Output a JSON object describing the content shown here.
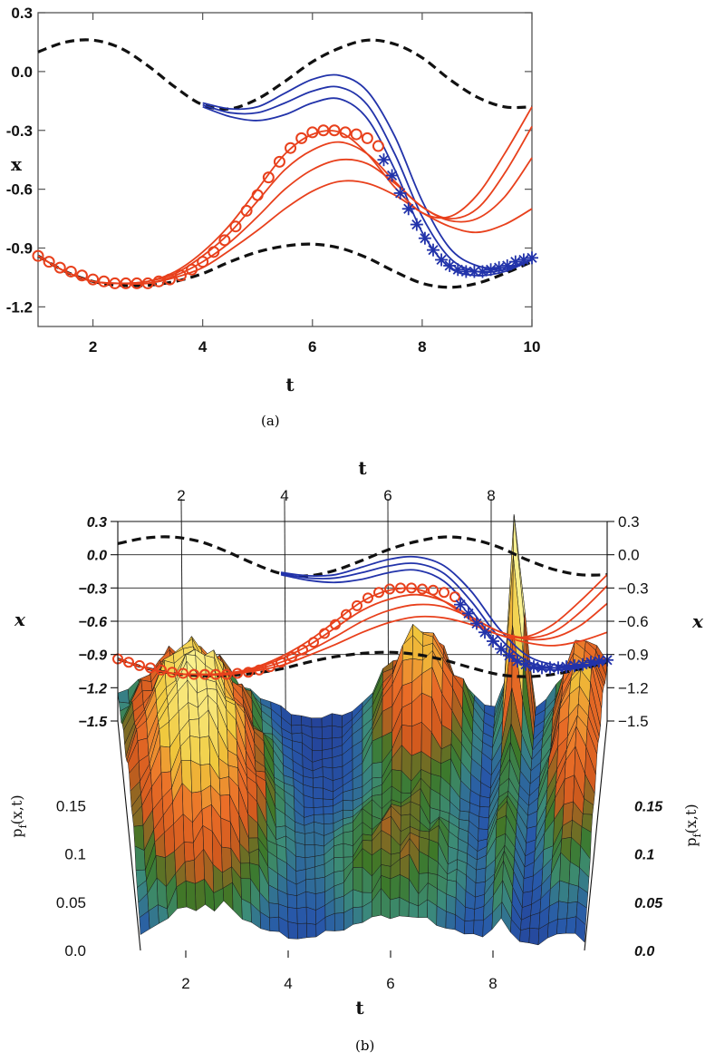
{
  "captions": {
    "a": "(a)",
    "b": "(b)"
  },
  "colors": {
    "blue": "#2233aa",
    "red": "#e8401c",
    "dashed": "#111111",
    "frame": "#555555"
  },
  "chart_data": [
    {
      "panel": "a",
      "type": "line",
      "xlabel": "t",
      "ylabel": "x",
      "xlim": [
        1,
        10
      ],
      "ylim": [
        -1.3,
        0.3
      ],
      "xticks": [
        "2",
        "4",
        "6",
        "8",
        "10"
      ],
      "xtick_values": [
        2,
        4,
        6,
        8,
        10
      ],
      "yticks": [
        "0.3",
        "0.0",
        "-0.3",
        "-0.6",
        "-0.9",
        "-1.2"
      ],
      "ytick_values": [
        0.3,
        0.0,
        -0.3,
        -0.6,
        -0.9,
        -1.2
      ],
      "series": [
        {
          "style": "dashed-black",
          "x": [
            1,
            1.5,
            2,
            2.5,
            3,
            3.5,
            4,
            4.5,
            5,
            5.5,
            6,
            6.5,
            7,
            7.5,
            8,
            8.5,
            9,
            9.5,
            10
          ],
          "y": [
            0.1,
            0.15,
            0.16,
            0.12,
            0.03,
            -0.08,
            -0.17,
            -0.19,
            -0.14,
            -0.05,
            0.05,
            0.12,
            0.16,
            0.14,
            0.07,
            -0.04,
            -0.13,
            -0.18,
            -0.18
          ]
        },
        {
          "style": "dashed-black",
          "x": [
            1,
            1.5,
            2,
            2.5,
            3,
            3.5,
            4,
            4.5,
            5,
            5.5,
            6,
            6.5,
            7,
            7.5,
            8,
            8.5,
            9,
            9.5,
            10
          ],
          "y": [
            -0.94,
            -1.02,
            -1.07,
            -1.09,
            -1.09,
            -1.07,
            -1.03,
            -0.97,
            -0.92,
            -0.89,
            -0.88,
            -0.9,
            -0.95,
            -1.02,
            -1.08,
            -1.1,
            -1.08,
            -1.03,
            -0.97
          ]
        },
        {
          "style": "blue",
          "x": [
            4,
            4.5,
            5,
            5.5,
            6,
            6.5,
            7,
            7.5,
            8,
            8.5,
            9,
            9.5,
            10
          ],
          "y": [
            -0.16,
            -0.19,
            -0.18,
            -0.11,
            -0.04,
            -0.02,
            -0.1,
            -0.33,
            -0.66,
            -0.9,
            -0.99,
            -1.0,
            -0.96
          ]
        },
        {
          "style": "blue",
          "x": [
            4,
            4.5,
            5,
            5.5,
            6,
            6.5,
            7,
            7.5,
            8,
            8.5,
            9,
            9.5,
            10
          ],
          "y": [
            -0.17,
            -0.21,
            -0.21,
            -0.16,
            -0.1,
            -0.08,
            -0.17,
            -0.42,
            -0.74,
            -0.95,
            -1.02,
            -1.01,
            -0.96
          ]
        },
        {
          "style": "blue",
          "x": [
            4,
            4.5,
            5,
            5.5,
            6,
            6.5,
            7,
            7.5,
            8,
            8.5,
            9,
            9.5,
            10
          ],
          "y": [
            -0.18,
            -0.23,
            -0.25,
            -0.22,
            -0.16,
            -0.14,
            -0.24,
            -0.5,
            -0.82,
            -1.0,
            -1.04,
            -1.02,
            -0.96
          ]
        },
        {
          "style": "red",
          "x": [
            1,
            1.5,
            2,
            2.5,
            3,
            3.5,
            4,
            4.5,
            5,
            5.5,
            6,
            6.5,
            7,
            7.5,
            8,
            8.5,
            9,
            9.5,
            10
          ],
          "y": [
            -0.94,
            -1.02,
            -1.07,
            -1.08,
            -1.07,
            -1.02,
            -0.92,
            -0.78,
            -0.6,
            -0.42,
            -0.32,
            -0.31,
            -0.42,
            -0.59,
            -0.72,
            -0.74,
            -0.63,
            -0.42,
            -0.18
          ]
        },
        {
          "style": "red",
          "x": [
            1,
            1.5,
            2,
            2.5,
            3,
            3.5,
            4,
            4.5,
            5,
            5.5,
            6,
            6.5,
            7,
            7.5,
            8,
            8.5,
            9,
            9.5,
            10
          ],
          "y": [
            -0.94,
            -1.02,
            -1.07,
            -1.08,
            -1.07,
            -1.03,
            -0.94,
            -0.82,
            -0.66,
            -0.5,
            -0.4,
            -0.36,
            -0.42,
            -0.56,
            -0.69,
            -0.75,
            -0.7,
            -0.52,
            -0.28
          ]
        },
        {
          "style": "red",
          "x": [
            1,
            1.5,
            2,
            2.5,
            3,
            3.5,
            4,
            4.5,
            5,
            5.5,
            6,
            6.5,
            7,
            7.5,
            8,
            8.5,
            9,
            9.5,
            10
          ],
          "y": [
            -0.94,
            -1.02,
            -1.07,
            -1.08,
            -1.08,
            -1.04,
            -0.97,
            -0.87,
            -0.74,
            -0.6,
            -0.5,
            -0.45,
            -0.47,
            -0.57,
            -0.69,
            -0.76,
            -0.75,
            -0.64,
            -0.44
          ]
        },
        {
          "style": "red",
          "x": [
            1,
            1.5,
            2,
            2.5,
            3,
            3.5,
            4,
            4.5,
            5,
            5.5,
            6,
            6.5,
            7,
            7.5,
            8,
            8.5,
            9,
            9.5,
            10
          ],
          "y": [
            -0.94,
            -1.02,
            -1.07,
            -1.08,
            -1.08,
            -1.05,
            -1.0,
            -0.91,
            -0.81,
            -0.7,
            -0.61,
            -0.56,
            -0.57,
            -0.63,
            -0.72,
            -0.79,
            -0.82,
            -0.78,
            -0.7
          ]
        },
        {
          "style": "red-circles",
          "x": [
            1,
            1.2,
            1.4,
            1.6,
            1.8,
            2,
            2.2,
            2.4,
            2.6,
            2.8,
            3,
            3.2,
            3.4,
            3.6,
            3.8,
            4,
            4.2,
            4.4,
            4.6,
            4.8,
            5,
            5.2,
            5.4,
            5.6,
            5.8,
            6,
            6.2,
            6.4,
            6.6,
            6.8,
            7,
            7.2
          ],
          "y": [
            -0.94,
            -0.97,
            -1.0,
            -1.02,
            -1.04,
            -1.06,
            -1.07,
            -1.08,
            -1.08,
            -1.08,
            -1.08,
            -1.07,
            -1.06,
            -1.04,
            -1.01,
            -0.97,
            -0.92,
            -0.86,
            -0.79,
            -0.71,
            -0.63,
            -0.54,
            -0.46,
            -0.39,
            -0.34,
            -0.31,
            -0.3,
            -0.3,
            -0.31,
            -0.32,
            -0.34,
            -0.38
          ]
        },
        {
          "style": "blue-stars",
          "x": [
            7.3,
            7.45,
            7.6,
            7.75,
            7.9,
            8.05,
            8.2,
            8.35,
            8.5,
            8.65,
            8.8,
            8.95,
            9.1,
            9.25,
            9.4,
            9.55,
            9.7,
            9.85,
            10.0
          ],
          "y": [
            -0.45,
            -0.53,
            -0.62,
            -0.7,
            -0.78,
            -0.85,
            -0.91,
            -0.96,
            -0.99,
            -1.01,
            -1.02,
            -1.02,
            -1.02,
            -1.01,
            -1.0,
            -0.99,
            -0.97,
            -0.96,
            -0.95
          ]
        }
      ]
    },
    {
      "panel": "b",
      "type": "surface",
      "top_axis": {
        "label": "t",
        "ticks": [
          "2",
          "4",
          "6",
          "8"
        ]
      },
      "bottom_axis": {
        "label": "t",
        "ticks": [
          "2",
          "4",
          "6",
          "8"
        ]
      },
      "x_axis_label": "x",
      "x_ticks": [
        "0.3",
        "0.0",
        "−0.3",
        "−0.6",
        "−0.9",
        "−1.2",
        "−1.5"
      ],
      "x_tick_values": [
        0.3,
        0.0,
        -0.3,
        -0.6,
        -0.9,
        -1.2,
        -1.5
      ],
      "z_axis_label": "p_f(x,t)",
      "z_label_main": "p",
      "z_label_sub": "f",
      "z_label_rest": "(x,t)",
      "z_ticks": [
        "0.15",
        "0.1",
        "0.05",
        "0.0"
      ],
      "z_tick_values": [
        0.15,
        0.1,
        0.05,
        0.0
      ],
      "surface_peak_t": [
        2,
        6.5,
        8.4
      ],
      "surface_peak_height": [
        0.16,
        0.12,
        0.22
      ]
    }
  ]
}
